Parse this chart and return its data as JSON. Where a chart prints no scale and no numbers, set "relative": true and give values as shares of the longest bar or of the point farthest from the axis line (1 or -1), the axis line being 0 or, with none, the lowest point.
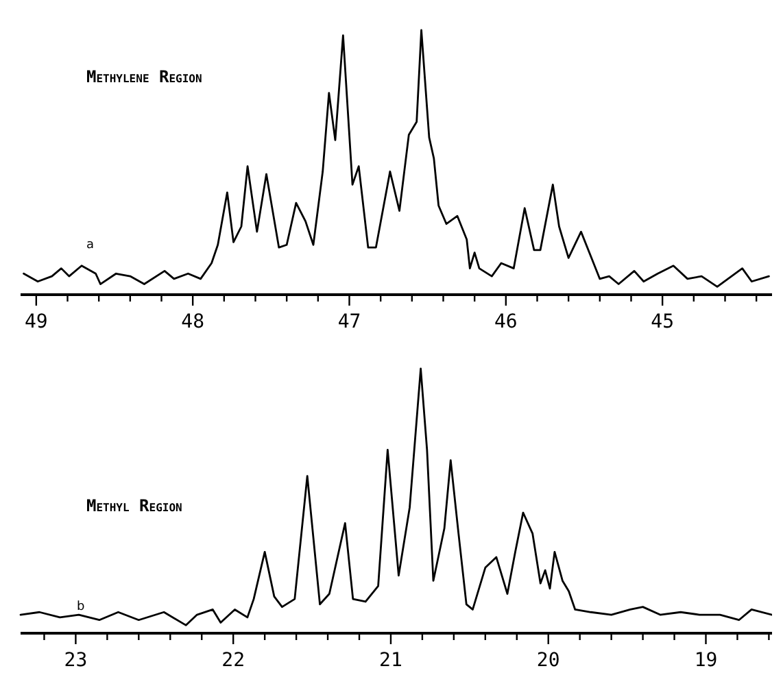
{
  "chart_data": [
    {
      "type": "line",
      "title": "Methylene Region",
      "relative": true,
      "annotations": [
        "a"
      ],
      "xlim": [
        49.1,
        44.3
      ],
      "xticks": [
        49,
        {
          "value": 48.8,
          "label": null
        },
        {
          "value": 48.6,
          "label": null
        },
        {
          "value": 48.4,
          "label": null
        },
        {
          "value": 48.2,
          "label": null
        },
        48,
        {
          "value": 47.8,
          "label": null
        },
        {
          "value": 47.6,
          "label": null
        },
        {
          "value": 47.4,
          "label": null
        },
        {
          "value": 47.2,
          "label": null
        },
        47,
        {
          "value": 46.8,
          "label": null
        },
        {
          "value": 46.6,
          "label": null
        },
        {
          "value": 46.4,
          "label": null
        },
        {
          "value": 46.2,
          "label": null
        },
        46,
        {
          "value": 45.8,
          "label": null
        },
        {
          "value": 45.6,
          "label": null
        },
        {
          "value": 45.4,
          "label": null
        },
        {
          "value": 45.2,
          "label": null
        },
        45,
        {
          "value": 44.8,
          "label": null
        },
        {
          "value": 44.6,
          "label": null
        },
        {
          "value": 44.4,
          "label": null
        }
      ],
      "series": [
        {
          "color": "#000000",
          "x": [
            49.08,
            48.99,
            48.9,
            48.84,
            48.79,
            48.71,
            48.62,
            48.59,
            48.49,
            48.4,
            48.31,
            48.18,
            48.12,
            48.03,
            47.95,
            47.88,
            47.84,
            47.78,
            47.74,
            47.69,
            47.65,
            47.59,
            47.53,
            47.45,
            47.4,
            47.34,
            47.28,
            47.23,
            47.17,
            47.13,
            47.09,
            47.04,
            46.98,
            46.94,
            46.88,
            46.83,
            46.74,
            46.68,
            46.62,
            46.57,
            46.54,
            46.49,
            46.46,
            46.43,
            46.38,
            46.31,
            46.25,
            46.23,
            46.2,
            46.17,
            46.09,
            46.03,
            45.95,
            45.88,
            45.82,
            45.78,
            45.7,
            45.66,
            45.6,
            45.52,
            45.46,
            45.4,
            45.34,
            45.28,
            45.18,
            45.12,
            45.03,
            44.93,
            44.84,
            44.75,
            44.65,
            44.49,
            44.43,
            44.32
          ],
          "values": [
            0.07,
            0.04,
            0.06,
            0.09,
            0.06,
            0.1,
            0.07,
            0.03,
            0.07,
            0.06,
            0.03,
            0.08,
            0.05,
            0.07,
            0.05,
            0.11,
            0.18,
            0.38,
            0.19,
            0.25,
            0.48,
            0.23,
            0.45,
            0.17,
            0.18,
            0.34,
            0.27,
            0.18,
            0.46,
            0.76,
            0.58,
            0.98,
            0.41,
            0.48,
            0.17,
            0.17,
            0.46,
            0.31,
            0.6,
            0.65,
            1.0,
            0.59,
            0.51,
            0.33,
            0.26,
            0.29,
            0.2,
            0.09,
            0.15,
            0.09,
            0.06,
            0.11,
            0.09,
            0.32,
            0.16,
            0.16,
            0.41,
            0.25,
            0.13,
            0.23,
            0.14,
            0.05,
            0.06,
            0.03,
            0.08,
            0.04,
            0.07,
            0.1,
            0.05,
            0.06,
            0.02,
            0.09,
            0.04,
            0.06
          ]
        }
      ]
    },
    {
      "type": "line",
      "title": "Methyl Region",
      "relative": true,
      "annotations": [
        "b"
      ],
      "xlim": [
        23.35,
        18.58
      ],
      "xticks": [
        {
          "value": 23.2,
          "label": null
        },
        23,
        {
          "value": 22.8,
          "label": null
        },
        {
          "value": 22.6,
          "label": null
        },
        {
          "value": 22.4,
          "label": null
        },
        {
          "value": 22.2,
          "label": null
        },
        22,
        {
          "value": 21.8,
          "label": null
        },
        {
          "value": 21.6,
          "label": null
        },
        {
          "value": 21.4,
          "label": null
        },
        {
          "value": 21.2,
          "label": null
        },
        21,
        {
          "value": 20.8,
          "label": null
        },
        {
          "value": 20.6,
          "label": null
        },
        {
          "value": 20.4,
          "label": null
        },
        {
          "value": 20.2,
          "label": null
        },
        20,
        {
          "value": 19.8,
          "label": null
        },
        {
          "value": 19.6,
          "label": null
        },
        {
          "value": 19.4,
          "label": null
        },
        {
          "value": 19.2,
          "label": null
        },
        19,
        {
          "value": 18.8,
          "label": null
        },
        {
          "value": 18.6,
          "label": null
        }
      ],
      "series": [
        {
          "color": "#000000",
          "x": [
            23.35,
            23.23,
            23.1,
            22.98,
            22.85,
            22.73,
            22.6,
            22.44,
            22.3,
            22.23,
            22.13,
            22.08,
            21.99,
            21.91,
            21.87,
            21.8,
            21.74,
            21.69,
            21.61,
            21.53,
            21.45,
            21.39,
            21.29,
            21.24,
            21.16,
            21.08,
            21.02,
            20.95,
            20.88,
            20.81,
            20.77,
            20.73,
            20.66,
            20.62,
            20.57,
            20.52,
            20.48,
            20.4,
            20.33,
            20.26,
            20.21,
            20.16,
            20.1,
            20.05,
            20.02,
            19.99,
            19.96,
            19.91,
            19.87,
            19.83,
            19.73,
            19.6,
            19.48,
            19.4,
            19.29,
            19.16,
            19.04,
            18.91,
            18.79,
            18.71,
            18.58
          ],
          "values": [
            0.06,
            0.07,
            0.05,
            0.06,
            0.04,
            0.07,
            0.04,
            0.07,
            0.02,
            0.06,
            0.08,
            0.03,
            0.08,
            0.05,
            0.12,
            0.3,
            0.13,
            0.09,
            0.12,
            0.59,
            0.1,
            0.14,
            0.41,
            0.12,
            0.11,
            0.17,
            0.69,
            0.21,
            0.47,
            1.0,
            0.69,
            0.19,
            0.39,
            0.65,
            0.37,
            0.1,
            0.08,
            0.24,
            0.28,
            0.14,
            0.3,
            0.45,
            0.37,
            0.18,
            0.23,
            0.16,
            0.3,
            0.19,
            0.15,
            0.08,
            0.07,
            0.06,
            0.08,
            0.09,
            0.06,
            0.07,
            0.06,
            0.06,
            0.04,
            0.08,
            0.06
          ]
        }
      ]
    }
  ]
}
